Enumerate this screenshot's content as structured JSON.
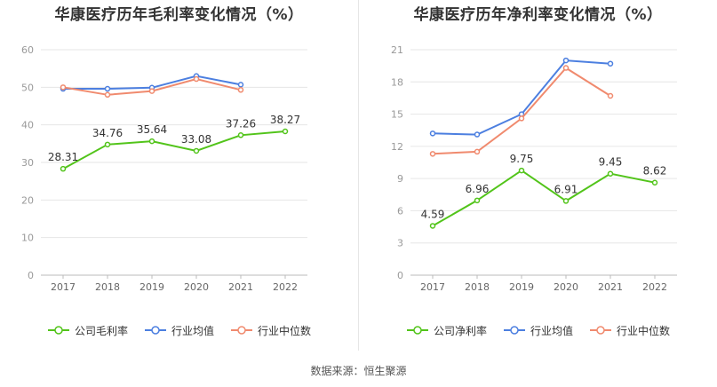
{
  "source_text": "数据来源：恒生聚源",
  "colors": {
    "company": "#52c41a",
    "industry_avg": "#4c7fe0",
    "industry_median": "#f08a6e",
    "grid": "#e6e6e6",
    "axis": "#999999",
    "label": "#333333"
  },
  "chart_data": [
    {
      "type": "line",
      "title": "华康医疗历年毛利率变化情况（%）",
      "categories": [
        "2017",
        "2018",
        "2019",
        "2020",
        "2021",
        "2022"
      ],
      "ylim": [
        0,
        60
      ],
      "yticks": [
        0,
        10,
        20,
        30,
        40,
        50,
        60
      ],
      "series": [
        {
          "name": "公司毛利率",
          "color_key": "company",
          "labeled": true,
          "values": [
            28.31,
            34.76,
            35.64,
            33.08,
            37.26,
            38.27
          ],
          "labels": [
            "28.31",
            "34.76",
            "35.64",
            "33.08",
            "37.26",
            "38.27"
          ]
        },
        {
          "name": "行业均值",
          "color_key": "industry_avg",
          "labeled": false,
          "values": [
            49.6,
            49.6,
            49.9,
            53.0,
            50.7,
            null
          ]
        },
        {
          "name": "行业中位数",
          "color_key": "industry_median",
          "labeled": false,
          "values": [
            50.0,
            48.0,
            49.0,
            52.2,
            49.3,
            null
          ]
        }
      ]
    },
    {
      "type": "line",
      "title": "华康医疗历年净利率变化情况（%）",
      "categories": [
        "2017",
        "2018",
        "2019",
        "2020",
        "2021",
        "2022"
      ],
      "ylim": [
        0,
        21
      ],
      "yticks": [
        0,
        3,
        6,
        9,
        12,
        15,
        18,
        21
      ],
      "series": [
        {
          "name": "公司净利率",
          "color_key": "company",
          "labeled": true,
          "values": [
            4.59,
            6.96,
            9.75,
            6.91,
            9.45,
            8.62
          ],
          "labels": [
            "4.59",
            "6.96",
            "9.75",
            "6.91",
            "9.45",
            "8.62"
          ]
        },
        {
          "name": "行业均值",
          "color_key": "industry_avg",
          "labeled": false,
          "values": [
            13.2,
            13.1,
            15.0,
            20.0,
            19.7,
            null
          ]
        },
        {
          "name": "行业中位数",
          "color_key": "industry_median",
          "labeled": false,
          "values": [
            11.3,
            11.5,
            14.6,
            19.3,
            16.7,
            null
          ]
        }
      ]
    }
  ]
}
